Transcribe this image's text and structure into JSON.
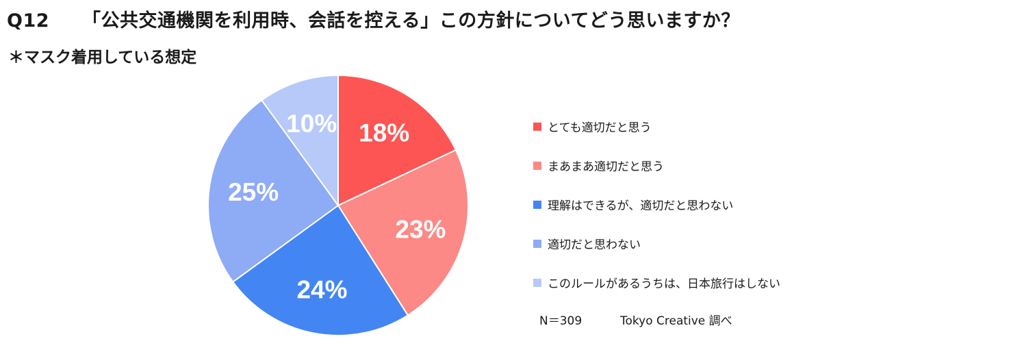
{
  "header": {
    "question_number": "Q12",
    "title": "「公共交通機関を利用時、会話を控える」この方針についてどう思いますか？",
    "subtitle": "＊マスク着用している想定"
  },
  "chart_data": {
    "type": "pie",
    "categories": [
      "とても適切だと思う",
      "まあまあ適切だと思う",
      "理解はできるが、適切だと思わない",
      "適切だと思わない",
      "このルールがあるうちは、日本旅行はしない"
    ],
    "values": [
      18,
      23,
      24,
      25,
      10
    ],
    "labels": [
      "18%",
      "23%",
      "24%",
      "25%",
      "10%"
    ],
    "colors": [
      "#fd5553",
      "#fd8986",
      "#4386f3",
      "#8eabf6",
      "#b7c9f8"
    ],
    "start_angle": "12 o'clock",
    "direction": "clockwise",
    "legend_position": "right"
  },
  "footer": {
    "sample_size": "N＝309",
    "source": "Tokyo Creative  調べ"
  }
}
